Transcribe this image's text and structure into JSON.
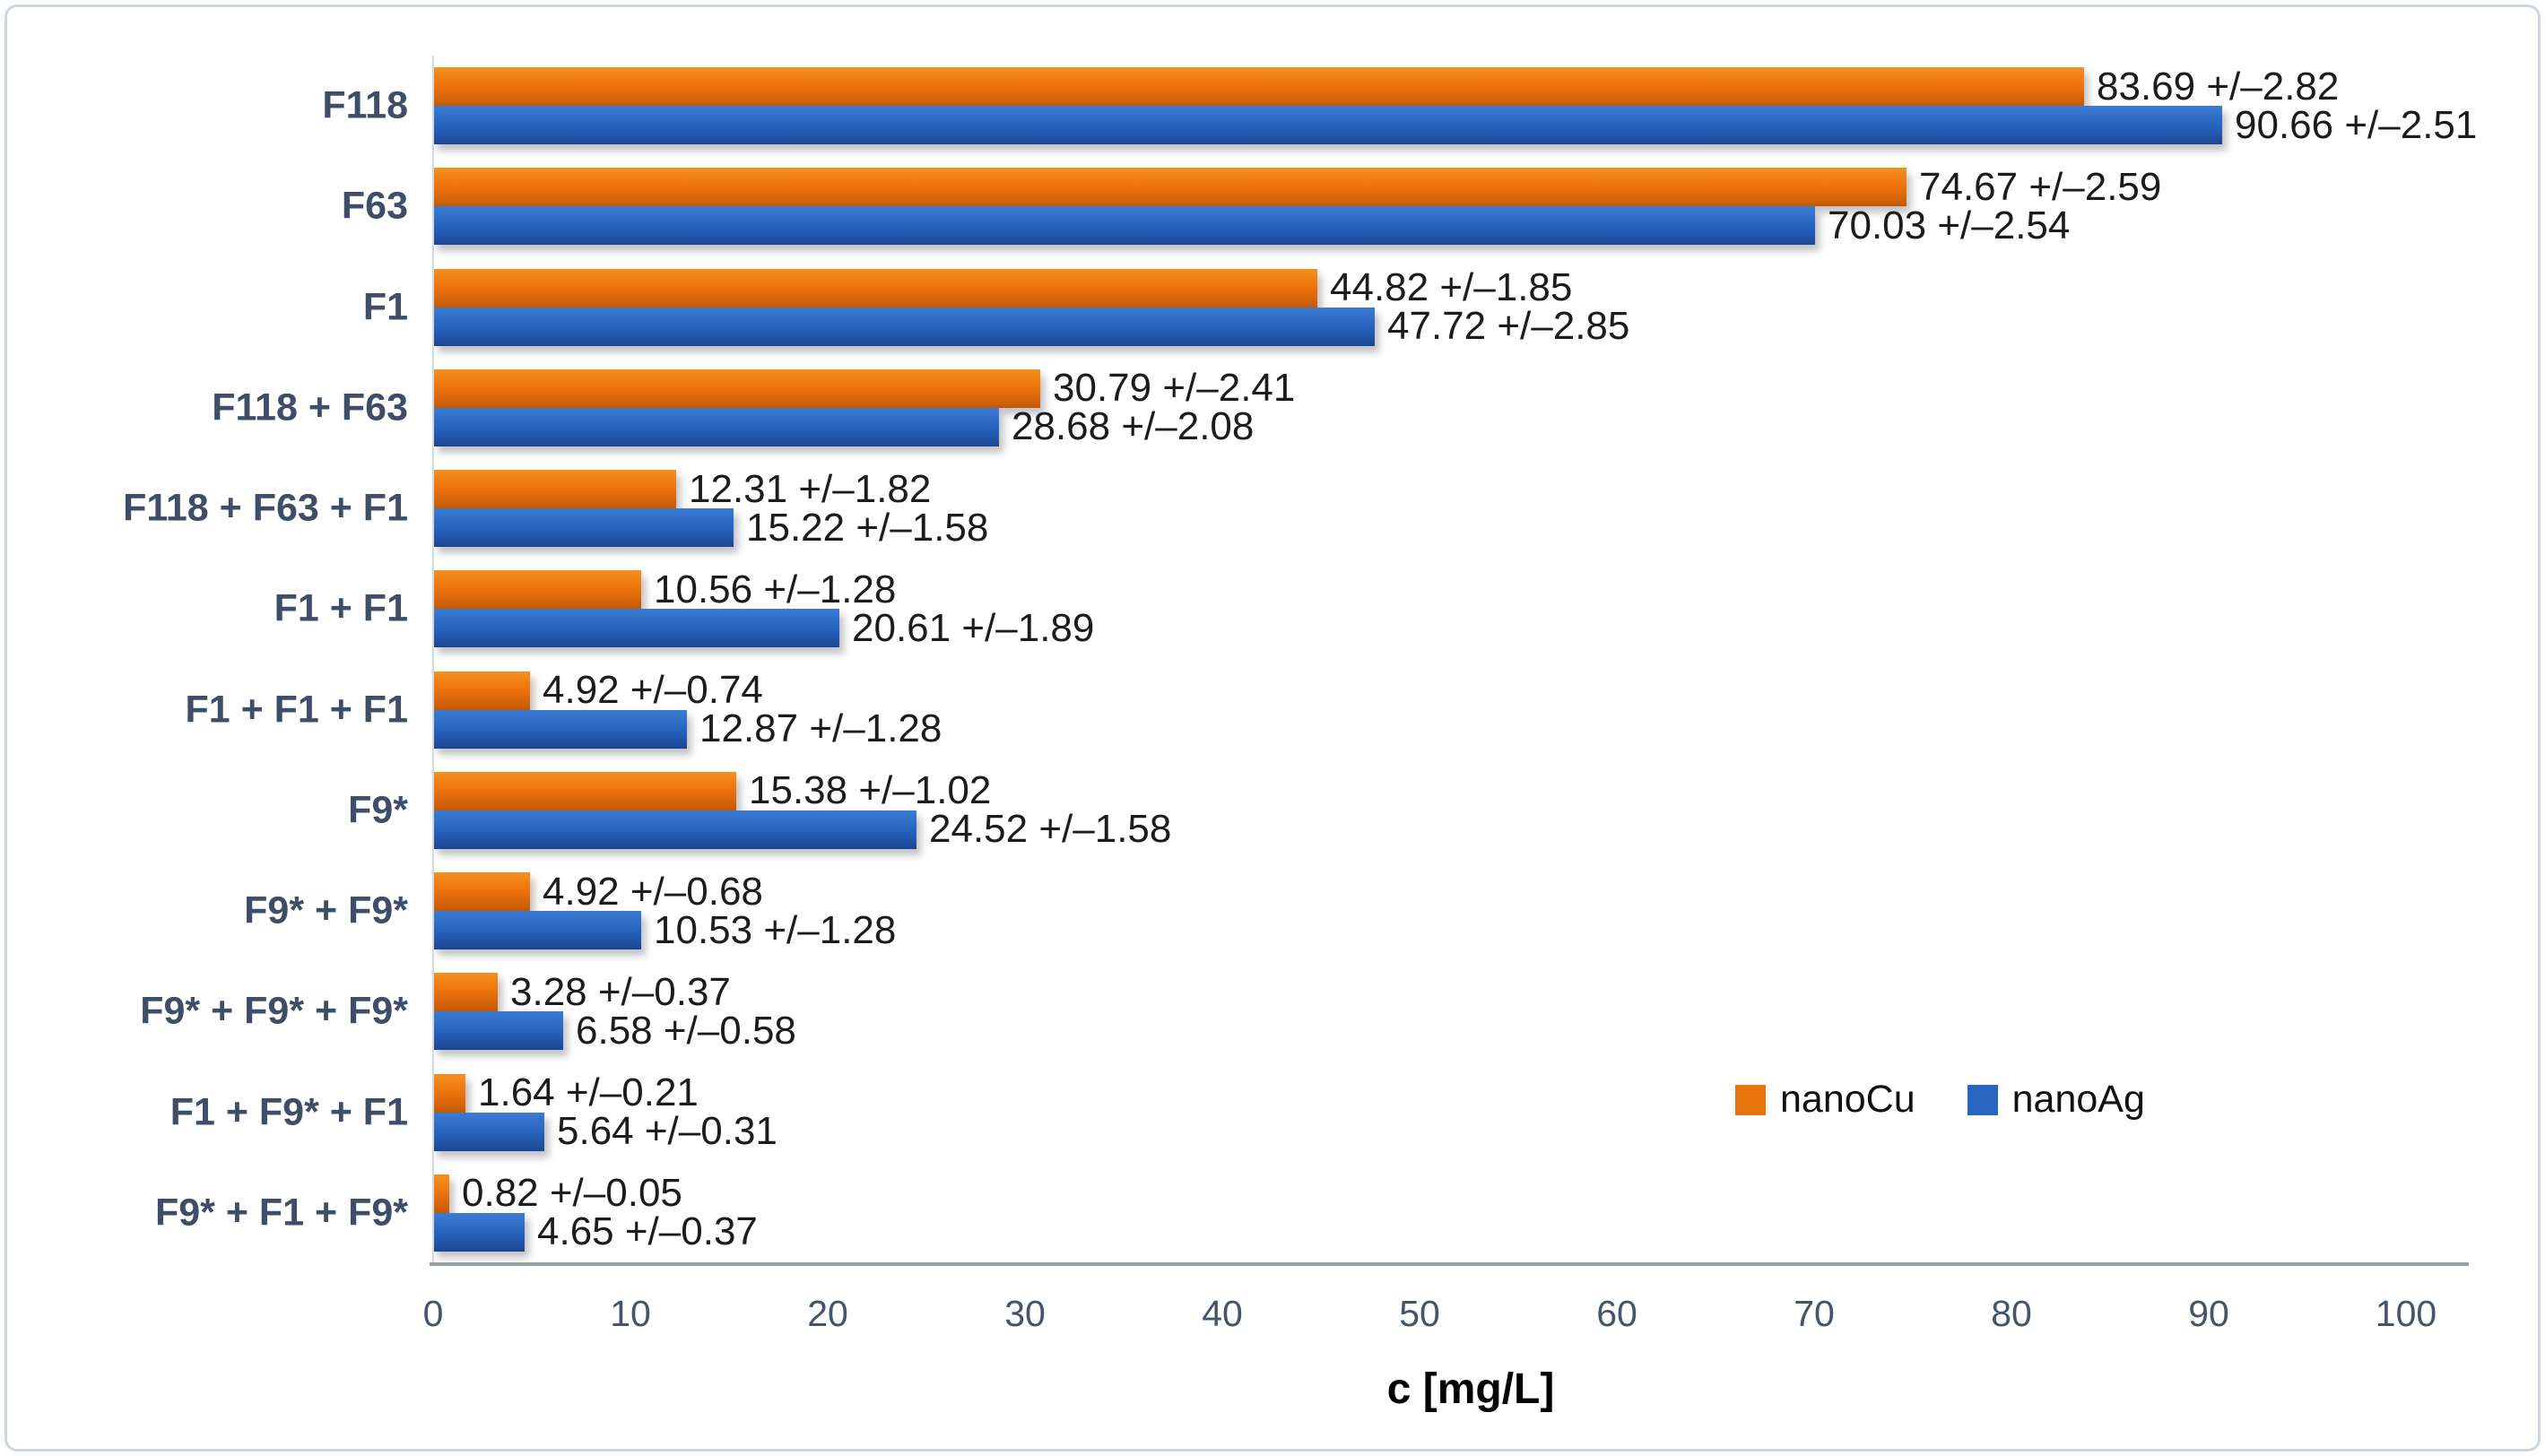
{
  "chart_data": {
    "type": "bar",
    "orientation": "horizontal",
    "xlabel": "c [mg/L]",
    "xlim": [
      0,
      100
    ],
    "x_ticks": [
      0,
      10,
      20,
      30,
      40,
      50,
      60,
      70,
      80,
      90,
      100
    ],
    "grid": false,
    "legend_position": "lower-right-inside",
    "categories": [
      "F118",
      "F63",
      "F1",
      "F118 + F63",
      "F118 + F63 + F1",
      "F1 + F1",
      "F1 + F1 + F1",
      "F9*",
      "F9* + F9*",
      "F9* + F9* + F9*",
      "F1 + F9* + F1",
      "F9* + F1 + F9*"
    ],
    "series": [
      {
        "name": "nanoCu",
        "color": "#e8740d",
        "values": [
          83.69,
          74.67,
          44.82,
          30.79,
          12.31,
          10.56,
          4.92,
          15.38,
          4.92,
          3.28,
          1.64,
          0.82
        ],
        "errors": [
          2.82,
          2.59,
          1.85,
          2.41,
          1.82,
          1.28,
          0.74,
          1.02,
          0.68,
          0.37,
          0.21,
          0.05
        ],
        "labels": [
          "83.69 +/–2.82",
          "74.67 +/–2.59",
          "44.82 +/–1.85",
          "30.79 +/–2.41",
          "12.31 +/–1.82",
          "10.56 +/–1.28",
          "4.92 +/–0.74",
          "15.38 +/–1.02",
          "4.92 +/–0.68",
          "3.28 +/–0.37",
          "1.64 +/–0.21",
          "0.82 +/–0.05"
        ]
      },
      {
        "name": "nanoAg",
        "color": "#2a66c0",
        "values": [
          90.66,
          70.03,
          47.72,
          28.68,
          15.22,
          20.61,
          12.87,
          24.52,
          10.53,
          6.58,
          5.64,
          4.65
        ],
        "errors": [
          2.51,
          2.54,
          2.85,
          2.08,
          1.58,
          1.89,
          1.28,
          1.58,
          1.28,
          0.58,
          0.31,
          0.37
        ],
        "labels": [
          "90.66 +/–2.51",
          "70.03 +/–2.54",
          "47.72 +/–2.85",
          "28.68 +/–2.08",
          "15.22 +/–1.58",
          "20.61 +/–1.89",
          "12.87 +/–1.28",
          "24.52 +/–1.58",
          "10.53 +/–1.28",
          "6.58 +/–0.58",
          "5.64 +/–0.31",
          "4.65 +/–0.37"
        ]
      }
    ]
  },
  "legend": {
    "items": [
      {
        "label": "nanoCu",
        "color": "#e8740d"
      },
      {
        "label": "nanoAg",
        "color": "#2a66c0"
      }
    ]
  }
}
